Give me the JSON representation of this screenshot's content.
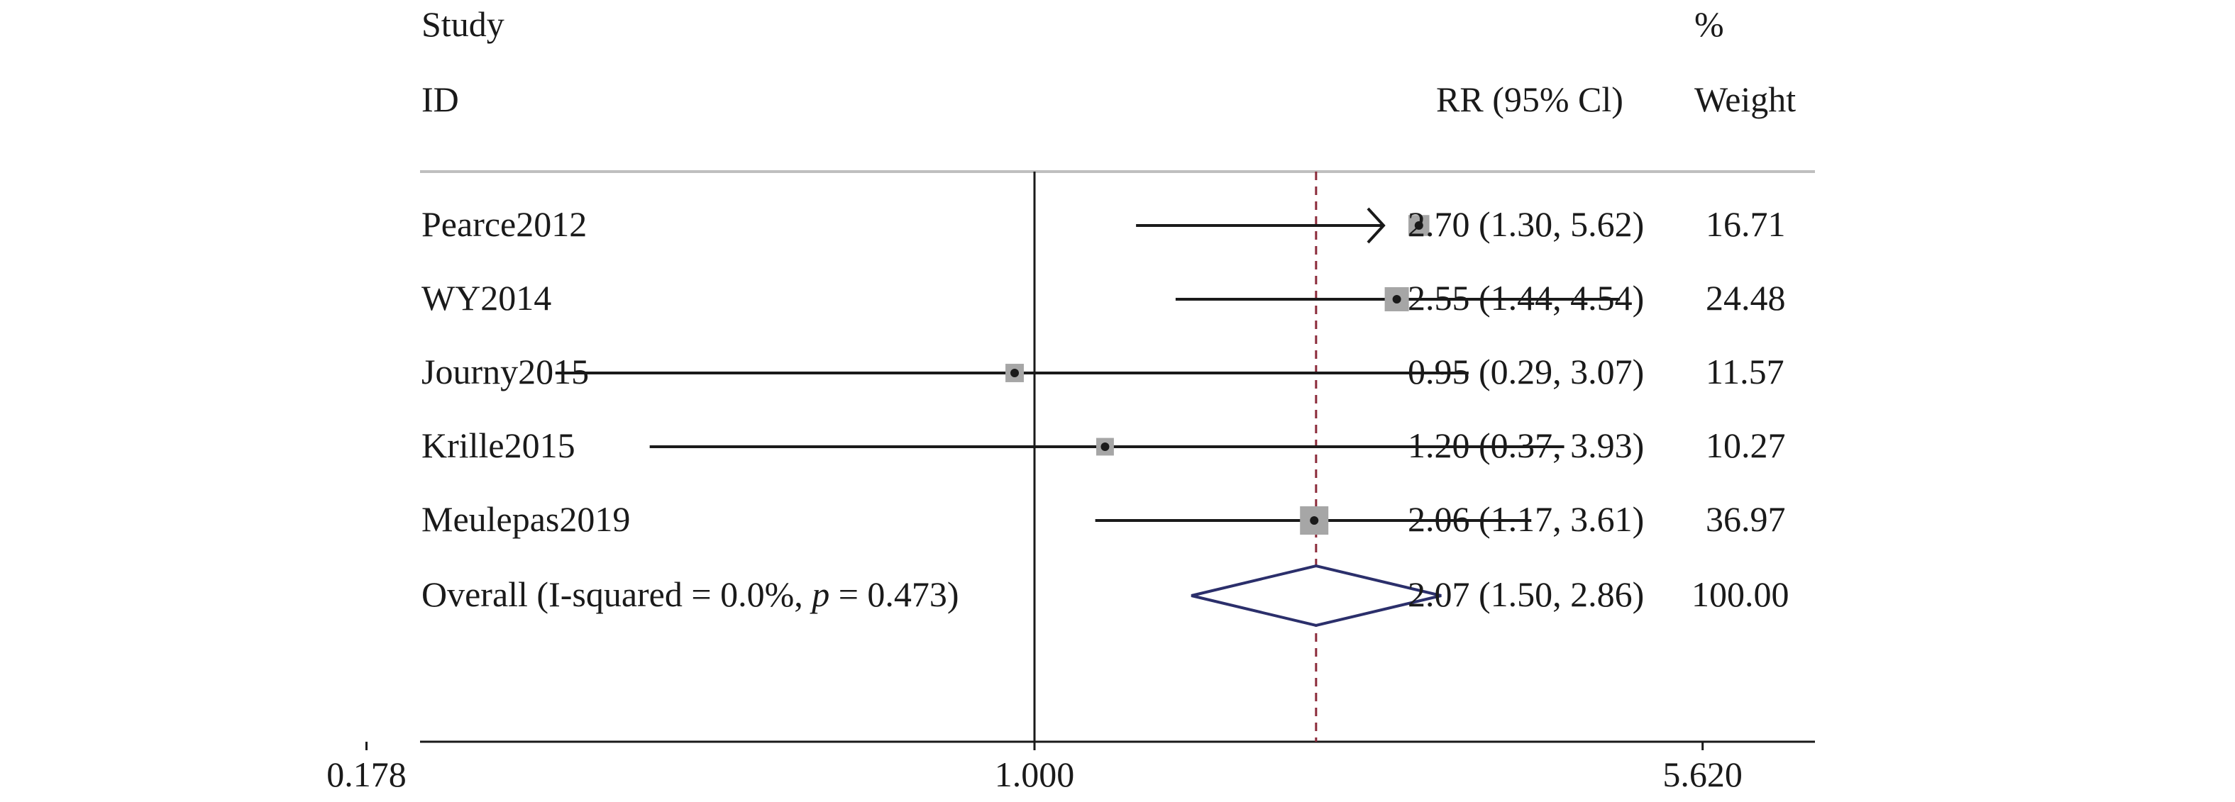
{
  "header": {
    "study_line1": "Study",
    "study_line2": "ID",
    "effect_label": "RR (95% Cl)",
    "weight_line1": "%",
    "weight_line2": "Weight"
  },
  "chart_data": {
    "type": "forest",
    "x_scale": "log",
    "xlim": [
      0.178,
      5.62
    ],
    "x_ticks": [
      "0.178",
      "1.000",
      "5.620"
    ],
    "x_tick_values": [
      0.178,
      1.0,
      5.62
    ],
    "null_line": 1.0,
    "pooled_line": 2.07,
    "studies": [
      {
        "name": "Pearce2012",
        "rr": 2.7,
        "lo": 1.3,
        "hi": 5.62,
        "ci_text": "2.70 (1.30, 5.62)",
        "weight": "16.71",
        "weight_value": 16.71,
        "arrow_right": true
      },
      {
        "name": "WY2014",
        "rr": 2.55,
        "lo": 1.44,
        "hi": 4.54,
        "ci_text": "2.55 (1.44, 4.54)",
        "weight": "24.48",
        "weight_value": 24.48
      },
      {
        "name": "Journy2015",
        "rr": 0.95,
        "lo": 0.29,
        "hi": 3.07,
        "ci_text": "0.95 (0.29, 3.07)",
        "weight": "11.57",
        "weight_value": 11.57
      },
      {
        "name": "Krille2015",
        "rr": 1.2,
        "lo": 0.37,
        "hi": 3.93,
        "ci_text": "1.20 (0.37, 3.93)",
        "weight": "10.27",
        "weight_value": 10.27
      },
      {
        "name": "Meulepas2019",
        "rr": 2.06,
        "lo": 1.17,
        "hi": 3.61,
        "ci_text": "2.06 (1.17, 3.61)",
        "weight": "36.97",
        "weight_value": 36.97
      }
    ],
    "overall": {
      "label_prefix": "Overall (I-squared = 0.0%, ",
      "label_p": "p",
      "label_suffix": " = 0.473)",
      "rr": 2.07,
      "lo": 1.5,
      "hi": 2.86,
      "ci_text": "2.07 (1.50, 2.86)",
      "weight": "100.00"
    },
    "colors": {
      "line": "#1a1a1a",
      "box": "#a6a6a6",
      "diamond": "#2b2f6b",
      "pooled_line": "#8b2a3a",
      "separator": "#bfbfbf"
    }
  }
}
